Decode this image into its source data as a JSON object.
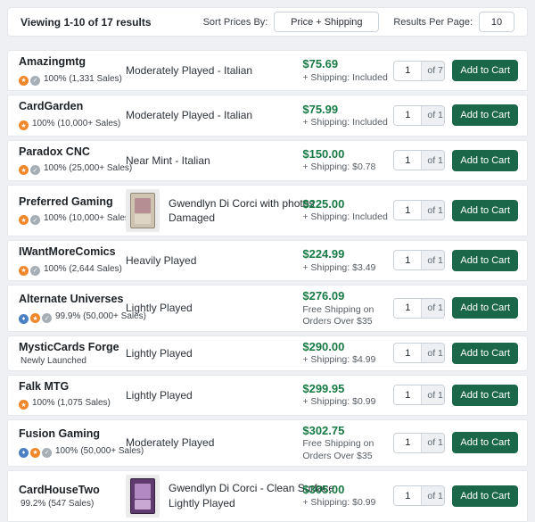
{
  "header": {
    "results_text": "Viewing 1-10 of 17 results",
    "sort_label": "Sort Prices By:",
    "sort_value": "Price + Shipping",
    "per_page_label": "Results Per Page:",
    "per_page_value": "10"
  },
  "add_to_cart_label": "Add to Cart",
  "colors": {
    "price_green": "#177a44",
    "button_green": "#1b674a",
    "badge_star": "#f0872a",
    "badge_verified": "#a6aeb6",
    "badge_direct": "#4a7fc1"
  },
  "badge_styles": {
    "star": {
      "glyph": "★",
      "color": "#f0872a",
      "name": "gold-star-badge-icon"
    },
    "verified": {
      "glyph": "✓",
      "color": "#a6aeb6",
      "name": "verified-badge-icon"
    },
    "direct": {
      "glyph": "♦",
      "color": "#4a7fc1",
      "name": "direct-seller-badge-icon"
    }
  },
  "listings": [
    {
      "seller": "Amazingmtg",
      "badges": [
        "star",
        "verified"
      ],
      "rating": "100% (1,331 Sales)",
      "title": "",
      "condition": "Moderately Played - Italian",
      "thumb": "",
      "price": "$75.69",
      "shipping": "+ Shipping: Included",
      "qty": "1",
      "of": "of 7"
    },
    {
      "seller": "CardGarden",
      "badges": [
        "star"
      ],
      "rating": "100% (10,000+ Sales)",
      "title": "",
      "condition": "Moderately Played - Italian",
      "thumb": "",
      "price": "$75.99",
      "shipping": "+ Shipping: Included",
      "qty": "1",
      "of": "of 1"
    },
    {
      "seller": "Paradox CNC",
      "badges": [
        "star",
        "verified"
      ],
      "rating": "100% (25,000+ Sales)",
      "title": "",
      "condition": "Near Mint - Italian",
      "thumb": "",
      "price": "$150.00",
      "shipping": "+ Shipping: $0.78",
      "qty": "1",
      "of": "of 1"
    },
    {
      "seller": "Preferred Gaming",
      "badges": [
        "star",
        "verified"
      ],
      "rating": "100% (10,000+ Sales)",
      "title": "Gwendlyn Di Corci with photos",
      "condition": "Damaged",
      "thumb": "tan",
      "price": "$225.00",
      "shipping": "+ Shipping: Included",
      "qty": "1",
      "of": "of 1"
    },
    {
      "seller": "IWantMoreComics",
      "badges": [
        "star",
        "verified"
      ],
      "rating": "100% (2,644 Sales)",
      "title": "",
      "condition": "Heavily Played",
      "thumb": "",
      "price": "$224.99",
      "shipping": "+ Shipping: $3.49",
      "qty": "1",
      "of": "of 1"
    },
    {
      "seller": "Alternate Universes",
      "badges": [
        "direct",
        "star",
        "verified"
      ],
      "rating": "99.9% (50,000+ Sales)",
      "title": "",
      "condition": "Lightly Played",
      "thumb": "",
      "price": "$276.09",
      "shipping": "Free Shipping on Orders Over $35",
      "qty": "1",
      "of": "of 1"
    },
    {
      "seller": "MysticCards Forge",
      "badges": [],
      "rating": "Newly Launched",
      "title": "",
      "condition": "Lightly Played",
      "thumb": "",
      "price": "$290.00",
      "shipping": "+ Shipping: $4.99",
      "qty": "1",
      "of": "of 1"
    },
    {
      "seller": "Falk MTG",
      "badges": [
        "star"
      ],
      "rating": "100% (1,075 Sales)",
      "title": "",
      "condition": "Lightly Played",
      "thumb": "",
      "price": "$299.95",
      "shipping": "+ Shipping: $0.99",
      "qty": "1",
      "of": "of 1"
    },
    {
      "seller": "Fusion Gaming",
      "badges": [
        "direct",
        "star",
        "verified"
      ],
      "rating": "100% (50,000+ Sales)",
      "title": "",
      "condition": "Moderately Played",
      "thumb": "",
      "price": "$302.75",
      "shipping": "Free Shipping on Orders Over $35",
      "qty": "1",
      "of": "of 1"
    },
    {
      "seller": "CardHouseTwo",
      "badges": [],
      "rating": "99.2% (547 Sales)",
      "title": "Gwendlyn Di Corci - Clean Surface",
      "condition": "Lightly Played",
      "thumb": "purple",
      "price": "$305.00",
      "shipping": "+ Shipping: $0.99",
      "qty": "1",
      "of": "of 1"
    }
  ]
}
